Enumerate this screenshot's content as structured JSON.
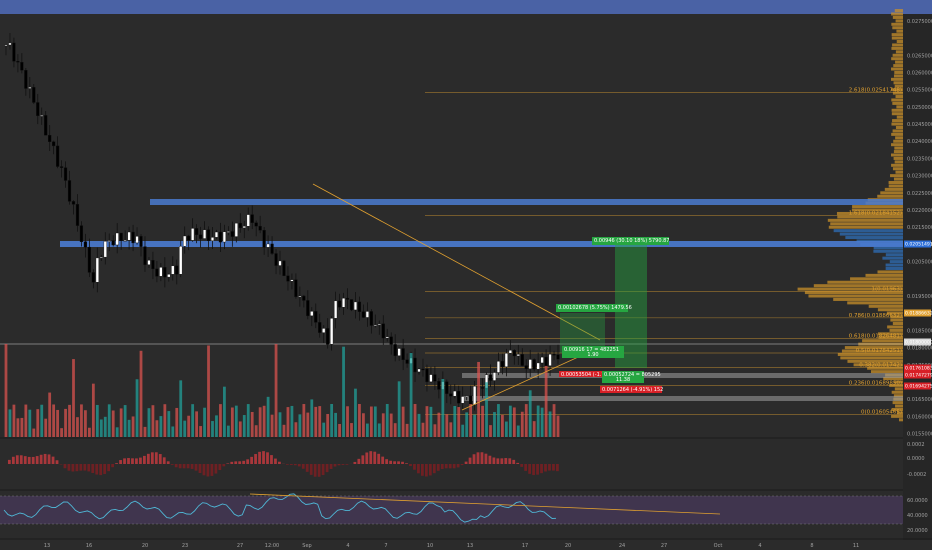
{
  "chart_data": {
    "type": "candlestick",
    "price_ticks": [
      "0.02750000",
      "0.02650000",
      "0.02600000",
      "0.02550000",
      "0.02500000",
      "0.02450000",
      "0.02400000",
      "0.02350000",
      "0.02300000",
      "0.02250000",
      "0.02200000",
      "0.02150000",
      "0.02100000",
      "0.02050000",
      "0.01950000",
      "0.01850000",
      "0.01800000",
      "0.01750000",
      "0.01650000",
      "0.01600000",
      "0.01550000"
    ],
    "ylim": [
      0.0154,
      0.0277
    ],
    "date_ticks": [
      "13",
      "16",
      "20",
      "23",
      "27",
      "12:00",
      "Sep",
      "4",
      "7",
      "10",
      "13",
      "17",
      "20",
      "24",
      "27",
      "Oct",
      "4",
      "8",
      "11"
    ],
    "fib_levels": [
      {
        "label": "2.618(0.02541748)",
        "price": 0.02541748
      },
      {
        "label": "1.618(0.02184152)",
        "price": 0.02184152
      },
      {
        "label": "1(0.01963)",
        "price": 0.01963
      },
      {
        "label": "0.786(0.01886632)",
        "price": 0.01886632
      },
      {
        "label": "0.618(0.01826481)",
        "price": 0.01826481
      },
      {
        "label": "0.5(0.01784251)",
        "price": 0.01784251
      },
      {
        "label": "0.382(0.01742)",
        "price": 0.01742
      },
      {
        "label": "0.236(0.01689850)",
        "price": 0.0168985
      },
      {
        "label": "0(0.01605465)",
        "price": 0.01605465
      }
    ],
    "range_boxes": [
      {
        "text": "0.00946 (30.10 18%) 5790.87",
        "color": "#26a641"
      },
      {
        "text": "0.00102678 (5.75%) 1479.56",
        "color": "#26a641"
      },
      {
        "text": "0.00916 17 = 482251",
        "subtext": "1.90",
        "color": "#26a641"
      },
      {
        "text": "0.00053504 (-1.70 = 805295",
        "color": "#d81f26"
      },
      {
        "text": "0.00052724 = 805295",
        "subtext": "11.38",
        "color": "#26a641"
      },
      {
        "text": "0.0071264 (-4.91%) 152",
        "color": "#d81f26"
      }
    ],
    "price_tags": [
      {
        "text": "0.02051491",
        "color": "#2e6fd8"
      },
      {
        "text": "0.01886632",
        "color": "#e0a030"
      },
      {
        "text": "0.01800000",
        "color": "#d8d8d8"
      },
      {
        "text": "0.01761083",
        "color": "#d81f26"
      },
      {
        "text": "0.01747279",
        "color": "#d81f26"
      },
      {
        "text": "0.01694275",
        "color": "#d81f26"
      }
    ],
    "macd_ticks": [
      "0.0002",
      "0.0000",
      "-0.0002"
    ],
    "rsi_ticks": [
      "60.0000",
      "40.0000",
      "20.0000"
    ],
    "colors": {
      "up": "#ffffff",
      "down": "#000000",
      "vol_up": "#22a09a",
      "vol_down": "#d9534f",
      "support": "#4a7bd0",
      "fib": "#e0a030",
      "rsi": "#4fb7d6"
    }
  }
}
